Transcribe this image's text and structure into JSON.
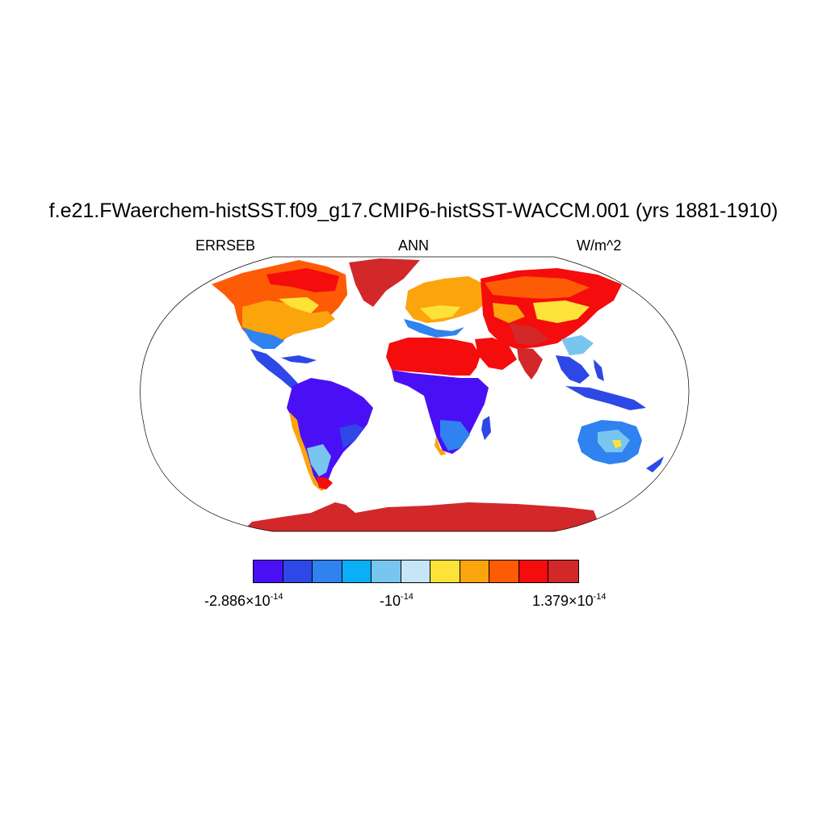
{
  "title": "f.e21.FWaerchem-histSST.f09_g17.CMIP6-histSST-WACCM.001 (yrs 1881-1910)",
  "left_label": "ERRSEB",
  "center_label": "ANN",
  "right_label": "W/m^2",
  "colorbar": {
    "colors": [
      "#4a10f5",
      "#2d48e6",
      "#2f82ef",
      "#0aaff8",
      "#78c6f0",
      "#c6e6f8",
      "#fde23a",
      "#fca40c",
      "#fd5b06",
      "#f50c0c",
      "#d2282a"
    ],
    "labels": [
      {
        "mantissa": "-2.886",
        "times": "×",
        "base": "10",
        "exponent": "-14"
      },
      {
        "mantissa": "-",
        "times": "",
        "base": "10",
        "exponent": "-14"
      },
      {
        "mantissa": "1.379",
        "times": "×",
        "base": "10",
        "exponent": "-14"
      }
    ]
  },
  "map": {
    "projection": "Robinson",
    "land_color_categories": [
      "red",
      "orange",
      "yellow",
      "light-blue",
      "blue",
      "dark-blue"
    ]
  }
}
